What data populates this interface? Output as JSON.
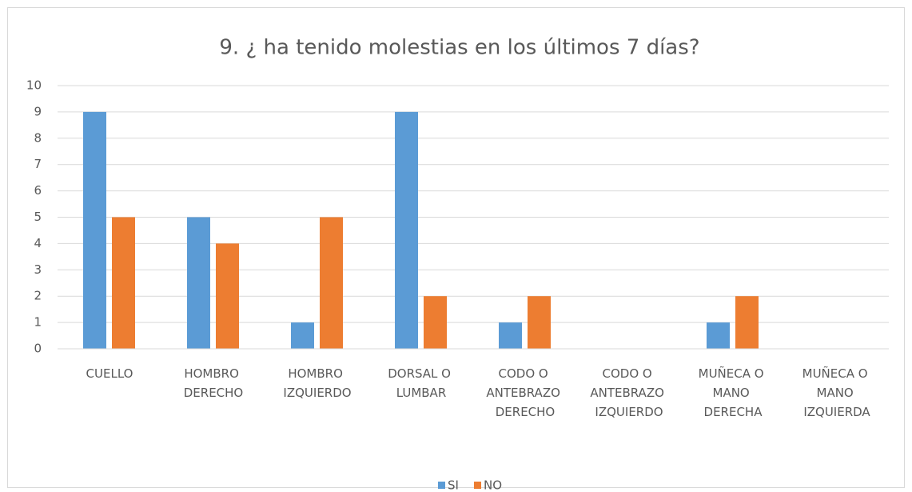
{
  "chart_data": {
    "type": "bar",
    "title": "9. ¿ ha tenido molestias en los últimos 7 días?",
    "categories": [
      "CUELLO",
      "HOMBRO DERECHO",
      "HOMBRO IZQUIERDO",
      "DORSAL O LUMBAR",
      "CODO O ANTEBRAZO DERECHO",
      "CODO O ANTEBRAZO IZQUIERDO",
      "MUÑECA O MANO DERECHA",
      "MUÑECA O MANO IZQUIERDA"
    ],
    "series": [
      {
        "name": "SI",
        "color": "#5b9bd5",
        "values": [
          9,
          5,
          1,
          9,
          1,
          0,
          1,
          0
        ]
      },
      {
        "name": "NO",
        "color": "#ed7d31",
        "values": [
          5,
          4,
          5,
          2,
          2,
          0,
          2,
          0
        ]
      }
    ],
    "ylim": [
      0,
      10
    ],
    "yticks": [
      0,
      1,
      2,
      3,
      4,
      5,
      6,
      7,
      8,
      9,
      10
    ],
    "grid": true,
    "legend": "bottom"
  }
}
